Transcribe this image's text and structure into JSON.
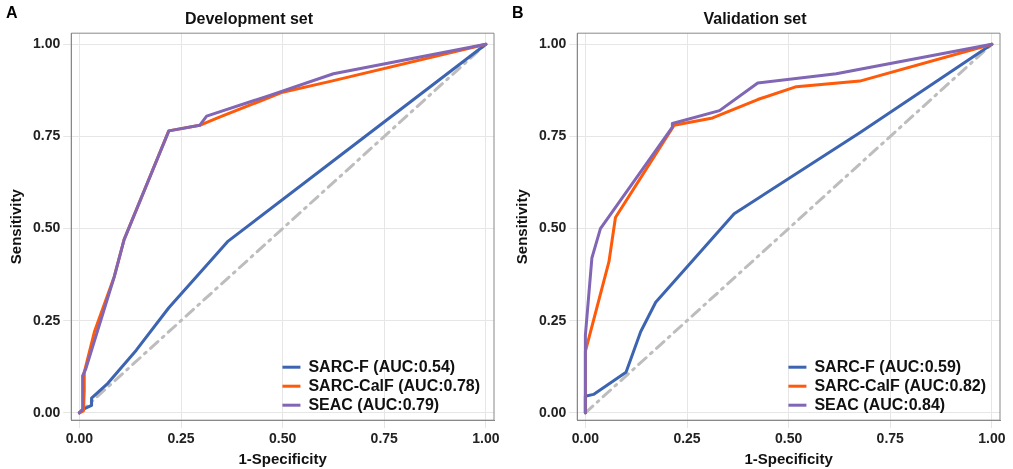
{
  "chart_data": [
    {
      "type": "line",
      "title": "Development set",
      "xlabel": "1-Specificity",
      "ylabel": "Sensitivity",
      "annotations": [
        "A"
      ],
      "xlim": [
        -0.02,
        1.02
      ],
      "ylim": [
        -0.02,
        1.03
      ],
      "xticks": [
        {
          "value": 0,
          "label": "0.00"
        },
        {
          "value": 0.25,
          "label": "0.25"
        },
        {
          "value": 0.5,
          "label": "0.50"
        },
        {
          "value": 0.75,
          "label": "0.75"
        },
        {
          "value": 1,
          "label": "1.00"
        }
      ],
      "yticks": [
        {
          "value": 0,
          "label": "0.00"
        },
        {
          "value": 0.25,
          "label": "0.25"
        },
        {
          "value": 0.5,
          "label": "0.50"
        },
        {
          "value": 0.75,
          "label": "0.75"
        },
        {
          "value": 1,
          "label": "1.00"
        }
      ],
      "grid": true,
      "legend": "bottom right",
      "marker": "none",
      "series": [
        {
          "name": "SARC-F (AUC:0.54)",
          "color": "#3c64b1",
          "x": [
            0,
            0.01,
            0.03,
            0.03,
            0.07,
            0.14,
            0.22,
            0.366,
            0.62,
            1
          ],
          "values": [
            0,
            0.01,
            0.02,
            0.04,
            0.08,
            0.17,
            0.285,
            0.466,
            0.68,
            1
          ]
        },
        {
          "name": "SARC-CalF (AUC:0.78)",
          "color": "#ff5a0a",
          "x": [
            0,
            0.01,
            0.012,
            0.012,
            0.037,
            0.086,
            0.11,
            0.22,
            0.296,
            0.34,
            0.5,
            0.62,
            1
          ],
          "values": [
            0,
            0.005,
            0.06,
            0.11,
            0.22,
            0.37,
            0.47,
            0.765,
            0.78,
            0.8,
            0.87,
            0.9,
            1
          ]
        },
        {
          "name": "SEAC (AUC:0.79)",
          "color": "#8066b4",
          "x": [
            0,
            0.008,
            0.008,
            0.016,
            0.086,
            0.11,
            0.22,
            0.296,
            0.313,
            0.465,
            0.625,
            1
          ],
          "values": [
            0,
            0.01,
            0.1,
            0.12,
            0.37,
            0.47,
            0.765,
            0.78,
            0.805,
            0.86,
            0.92,
            1
          ]
        },
        {
          "color": "#bdbdbd",
          "line_style": "dashed",
          "x": [
            0,
            1
          ],
          "values": [
            0,
            1
          ]
        }
      ]
    },
    {
      "type": "line",
      "title": "Validation set",
      "xlabel": "1-Specificity",
      "ylabel": "Sensitivity",
      "annotations": [
        "B"
      ],
      "xlim": [
        -0.02,
        1.02
      ],
      "ylim": [
        -0.02,
        1.03
      ],
      "xticks": [
        {
          "value": 0,
          "label": "0.00"
        },
        {
          "value": 0.25,
          "label": "0.25"
        },
        {
          "value": 0.5,
          "label": "0.50"
        },
        {
          "value": 0.75,
          "label": "0.75"
        },
        {
          "value": 1,
          "label": "1.00"
        }
      ],
      "yticks": [
        {
          "value": 0,
          "label": "0.00"
        },
        {
          "value": 0.25,
          "label": "0.25"
        },
        {
          "value": 0.5,
          "label": "0.50"
        },
        {
          "value": 0.75,
          "label": "0.75"
        },
        {
          "value": 1,
          "label": "1.00"
        }
      ],
      "grid": true,
      "legend": "bottom right",
      "marker": "none",
      "series": [
        {
          "name": "SARC-F (AUC:0.59)",
          "color": "#3c64b1",
          "x": [
            0,
            0,
            0.02,
            0.1,
            0.136,
            0.173,
            0.366,
            0.675,
            1
          ],
          "values": [
            0,
            0.045,
            0.05,
            0.11,
            0.22,
            0.3,
            0.54,
            0.76,
            1
          ]
        },
        {
          "name": "SARC-CalF (AUC:0.82)",
          "color": "#ff5a0a",
          "x": [
            0,
            0,
            0.058,
            0.074,
            0.218,
            0.313,
            0.424,
            0.519,
            0.675,
            1
          ],
          "values": [
            0,
            0.167,
            0.41,
            0.53,
            0.78,
            0.8,
            0.85,
            0.885,
            0.9,
            1
          ]
        },
        {
          "name": "SEAC (AUC:0.84)",
          "color": "#8066b4",
          "x": [
            0,
            0,
            0.016,
            0.037,
            0.214,
            0.214,
            0.33,
            0.424,
            0.617,
            1
          ],
          "values": [
            0,
            0.21,
            0.42,
            0.5,
            0.775,
            0.785,
            0.82,
            0.895,
            0.92,
            1
          ]
        },
        {
          "color": "#bdbdbd",
          "line_style": "dashed",
          "x": [
            0,
            1
          ],
          "values": [
            0,
            1
          ]
        }
      ]
    }
  ]
}
